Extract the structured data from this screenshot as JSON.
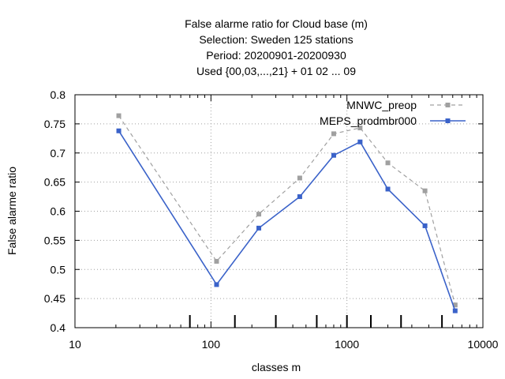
{
  "chart_data": {
    "type": "line",
    "title_lines": [
      "False alarme ratio  for Cloud base (m)",
      "Selection: Sweden    125 stations",
      "Period: 20200901-20200930",
      "Used {00,03,...,21} + 01 02 ... 09"
    ],
    "xlabel": "classes m",
    "ylabel": "False alarme ratio",
    "x_scale": "log",
    "xlim": [
      10,
      10000
    ],
    "ylim": [
      0.4,
      0.8
    ],
    "x_tick_labels": [
      "10",
      "100",
      "1000",
      "10000"
    ],
    "y_tick_labels": [
      "0.4",
      "0.45",
      "0.5",
      "0.55",
      "0.6",
      "0.65",
      "0.7",
      "0.75",
      "0.8"
    ],
    "grid": true,
    "legend_position": "top-right",
    "class_markers": [
      70,
      150,
      300,
      600,
      1000,
      1500,
      2500,
      5000
    ],
    "series": [
      {
        "name": "MNWC_preop",
        "color": "#a0a0a0",
        "style": "dashed",
        "x": [
          21,
          110,
          225,
          450,
          800,
          1250,
          2000,
          3750,
          6250
        ],
        "y": [
          0.764,
          0.514,
          0.595,
          0.657,
          0.733,
          0.743,
          0.683,
          0.635,
          0.439
        ]
      },
      {
        "name": "MEPS_prodmbr000",
        "color": "#3a62c9",
        "style": "solid",
        "x": [
          21,
          110,
          225,
          450,
          800,
          1250,
          2000,
          3750,
          6250
        ],
        "y": [
          0.738,
          0.474,
          0.571,
          0.625,
          0.696,
          0.719,
          0.638,
          0.575,
          0.429
        ]
      }
    ]
  }
}
